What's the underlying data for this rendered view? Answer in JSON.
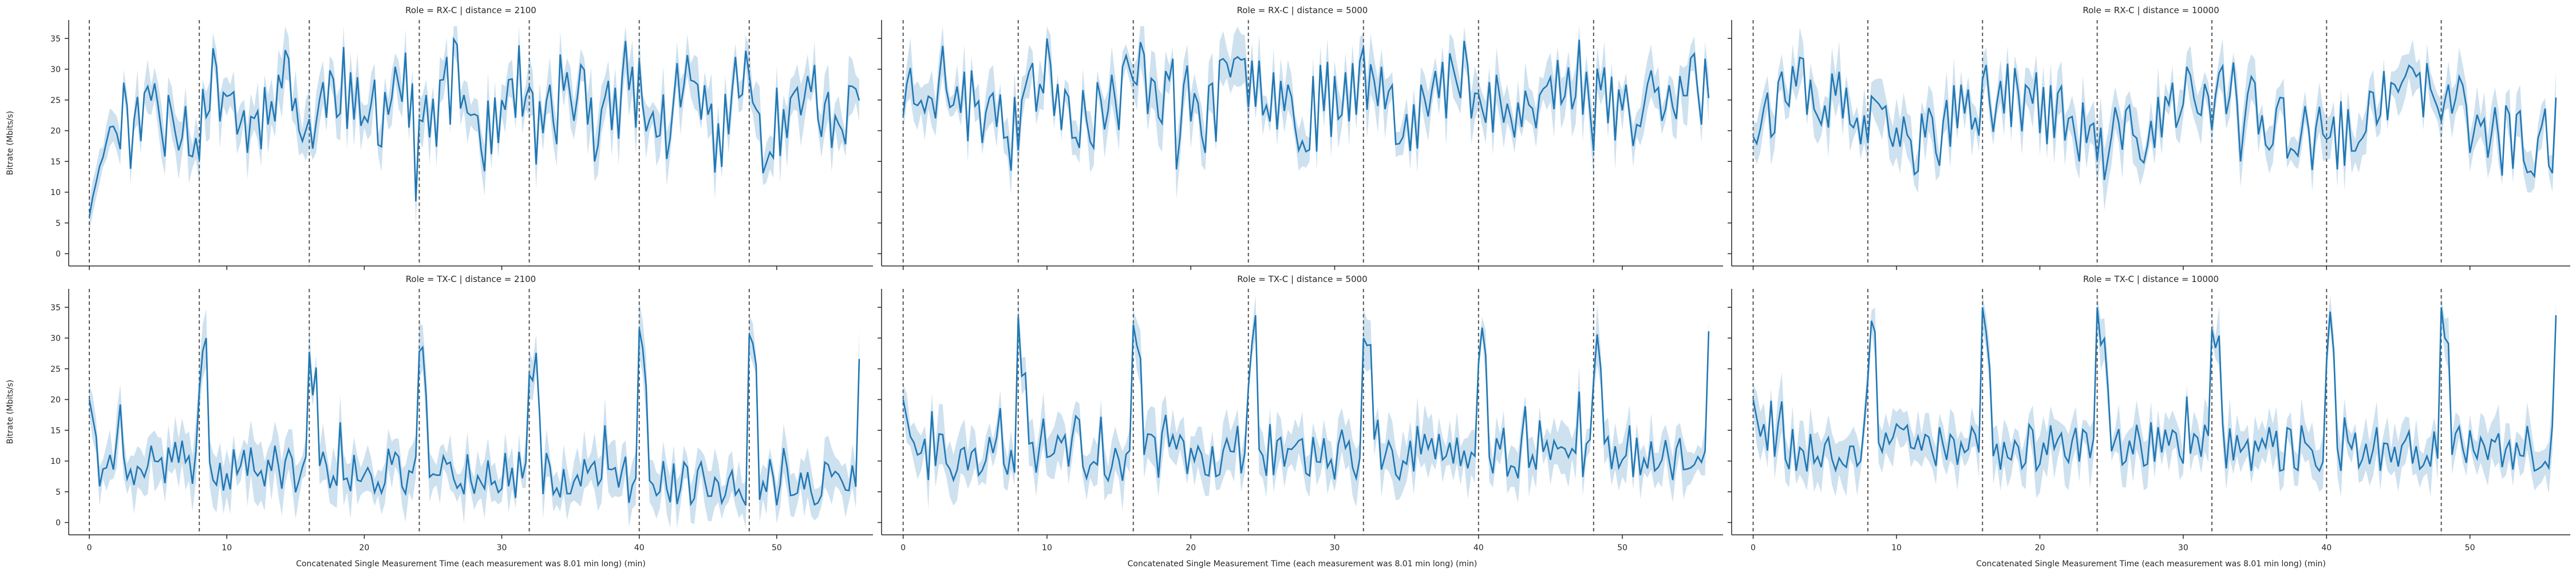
{
  "chart_data": [
    {
      "type": "line",
      "title": "Role = RX-C | distance = 2100",
      "ylabel": "Bitrate (Mbits/s)",
      "xlabel": "",
      "xlim": [
        -1.5,
        57
      ],
      "ylim": [
        -2,
        38
      ],
      "xticks": [],
      "yticks": [
        0,
        5,
        10,
        15,
        20,
        25,
        30,
        35
      ],
      "vlines": [
        0,
        8,
        16,
        24,
        32,
        40,
        48
      ],
      "series": [
        {
          "name": "",
          "color": "#1f77b4",
          "x": [],
          "y": []
        }
      ],
      "ci_band": true
    },
    {
      "type": "line",
      "title": "Role = RX-C | distance = 5000",
      "ylabel": "",
      "xlabel": "",
      "xlim": [
        -1.5,
        57
      ],
      "ylim": [
        -2,
        38
      ],
      "xticks": [],
      "yticks": [],
      "vlines": [
        0,
        8,
        16,
        24,
        32,
        40,
        48
      ],
      "series": [
        {
          "name": "",
          "color": "#1f77b4",
          "x": [],
          "y": []
        }
      ],
      "ci_band": true
    },
    {
      "type": "line",
      "title": "Role = RX-C | distance = 10000",
      "ylabel": "",
      "xlabel": "",
      "xlim": [
        -1.5,
        57
      ],
      "ylim": [
        -2,
        38
      ],
      "xticks": [],
      "yticks": [],
      "vlines": [
        0,
        8,
        16,
        24,
        32,
        40,
        48
      ],
      "series": [
        {
          "name": "",
          "color": "#1f77b4",
          "x": [],
          "y": []
        }
      ],
      "ci_band": true
    },
    {
      "type": "line",
      "title": "Role = TX-C | distance = 2100",
      "ylabel": "Bitrate (Mbits/s)",
      "xlabel": "Concatenated Single Measurement Time (each measurement was 8.01 min long) (min)",
      "xlim": [
        -1.5,
        57
      ],
      "ylim": [
        -2,
        38
      ],
      "xticks": [
        0,
        10,
        20,
        30,
        40,
        50
      ],
      "yticks": [
        0,
        5,
        10,
        15,
        20,
        25,
        30,
        35
      ],
      "vlines": [
        0,
        8,
        16,
        24,
        32,
        40,
        48
      ],
      "series": [
        {
          "name": "",
          "color": "#1f77b4",
          "x": [],
          "y": []
        }
      ],
      "ci_band": true
    },
    {
      "type": "line",
      "title": "Role = TX-C | distance = 5000",
      "ylabel": "",
      "xlabel": "Concatenated Single Measurement Time (each measurement was 8.01 min long) (min)",
      "xlim": [
        -1.5,
        57
      ],
      "ylim": [
        -2,
        38
      ],
      "xticks": [
        0,
        10,
        20,
        30,
        40,
        50
      ],
      "yticks": [],
      "vlines": [
        0,
        8,
        16,
        24,
        32,
        40,
        48
      ],
      "series": [
        {
          "name": "",
          "color": "#1f77b4",
          "x": [],
          "y": []
        }
      ],
      "ci_band": true
    },
    {
      "type": "line",
      "title": "Role = TX-C | distance = 10000",
      "ylabel": "",
      "xlabel": "Concatenated Single Measurement Time (each measurement was 8.01 min long) (min)",
      "xlim": [
        -1.5,
        57
      ],
      "ylim": [
        -2,
        38
      ],
      "xticks": [
        0,
        10,
        20,
        30,
        40,
        50
      ],
      "yticks": [],
      "vlines": [
        0,
        8,
        16,
        24,
        32,
        40,
        48
      ],
      "series": [
        {
          "name": "",
          "color": "#1f77b4",
          "x": [],
          "y": []
        }
      ],
      "ci_band": true
    }
  ],
  "colors": {
    "line": "#1f77b4",
    "band": "#1f77b4",
    "vline": "#555555",
    "axis": "#262626"
  }
}
